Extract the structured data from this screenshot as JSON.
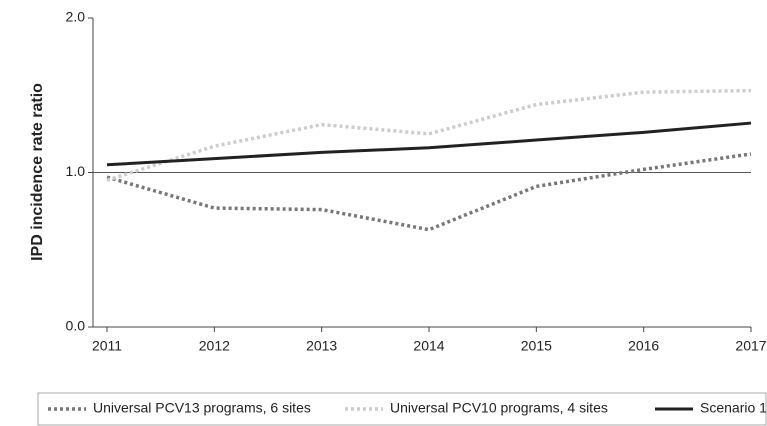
{
  "chart_data": {
    "type": "line",
    "y_label": "IPD incidence rate ratio",
    "categories": [
      "2011",
      "2012",
      "2013",
      "2014",
      "2015",
      "2016",
      "2017"
    ],
    "series": [
      {
        "name": "Universal PCV13 programs, 6 sites",
        "color": "#777777",
        "dash": "dotted",
        "values": [
          0.97,
          0.77,
          0.76,
          0.63,
          0.91,
          1.02,
          1.12
        ]
      },
      {
        "name": "Universal PCV10 programs, 4 sites",
        "color": "#cccccc",
        "dash": "dotted",
        "values": [
          0.95,
          1.17,
          1.31,
          1.25,
          1.44,
          1.52,
          1.53
        ]
      },
      {
        "name": "Scenario 1",
        "color": "#222222",
        "dash": "solid",
        "values": [
          1.05,
          1.09,
          1.13,
          1.16,
          1.21,
          1.26,
          1.32
        ]
      }
    ],
    "ylim": [
      0,
      2
    ],
    "yticks": [
      {
        "value": 0,
        "label": "0.0"
      },
      {
        "value": 1,
        "label": "1.0"
      },
      {
        "value": 2,
        "label": "2.0"
      }
    ],
    "reference_line": 1,
    "legend": "bottom"
  }
}
